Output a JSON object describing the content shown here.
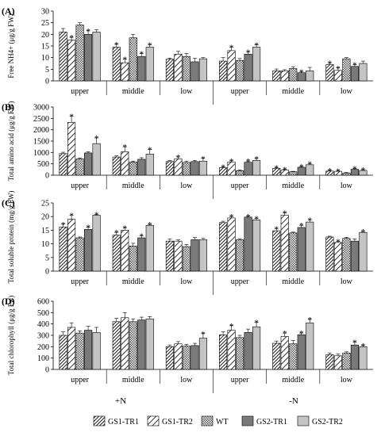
{
  "figure": {
    "n_label": "+N",
    "minus_n_label": "-N",
    "sig_mark": "*"
  },
  "legend": [
    {
      "name": "GS1-TR1",
      "pattern": "diag-dense"
    },
    {
      "name": "GS1-TR2",
      "pattern": "diag-wide"
    },
    {
      "name": "WT",
      "pattern": "checker"
    },
    {
      "name": "GS2-TR1",
      "pattern": "solid-dark"
    },
    {
      "name": "GS2-TR2",
      "pattern": "solid-light"
    }
  ],
  "chart_data": [
    {
      "type": "bar",
      "panel_label": "(A)",
      "ylabel": "Free NH4+ (μg/g FW)",
      "ylim": [
        0,
        30
      ],
      "yticks": [
        0,
        5,
        10,
        15,
        20,
        25,
        30
      ],
      "categories": [
        "upper",
        "middle",
        "low",
        "upper",
        "middle",
        "low"
      ],
      "series": [
        {
          "name": "GS1-TR1",
          "values": [
            21,
            14.5,
            9.3,
            8.5,
            4.3,
            7
          ],
          "errors": [
            1.5,
            1.2,
            0.5,
            1.5,
            0.8,
            0.7
          ],
          "sig": [
            false,
            true,
            false,
            false,
            false,
            true
          ]
        },
        {
          "name": "GS1-TR2",
          "values": [
            17.5,
            7.8,
            11.5,
            13,
            4.3,
            4.5
          ],
          "errors": [
            1.2,
            1.5,
            1.2,
            1.5,
            0.5,
            1.0
          ],
          "sig": [
            true,
            true,
            false,
            true,
            false,
            true
          ]
        },
        {
          "name": "WT",
          "values": [
            24,
            18.5,
            10.5,
            8.8,
            5.3,
            9.5
          ],
          "errors": [
            1.0,
            1.5,
            1.3,
            0.8,
            0.8,
            0.5
          ],
          "sig": [
            false,
            false,
            false,
            false,
            false,
            false
          ]
        },
        {
          "name": "GS2-TR1",
          "values": [
            20,
            10.5,
            8.2,
            11.5,
            3.5,
            6.2
          ],
          "errors": [
            1.5,
            1.2,
            1.5,
            1.0,
            0.5,
            0.8
          ],
          "sig": [
            true,
            true,
            false,
            true,
            true,
            true
          ]
        },
        {
          "name": "GS2-TR2",
          "values": [
            21,
            14.5,
            9.5,
            14.5,
            4.3,
            7.5
          ],
          "errors": [
            1.0,
            1.0,
            0.5,
            1.0,
            1.5,
            1.0
          ],
          "sig": [
            false,
            true,
            false,
            true,
            false,
            false
          ]
        }
      ]
    },
    {
      "type": "bar",
      "panel_label": "(B)",
      "ylabel": "Total amino acid (μg/g FW)",
      "ylim": [
        0,
        3000
      ],
      "yticks": [
        0,
        500,
        1000,
        1500,
        2000,
        2500,
        3000
      ],
      "categories": [
        "upper",
        "middle",
        "low",
        "upper",
        "middle",
        "low"
      ],
      "series": [
        {
          "name": "GS1-TR1",
          "values": [
            950,
            800,
            600,
            330,
            300,
            180
          ],
          "errors": [
            60,
            50,
            40,
            40,
            30,
            30
          ],
          "sig": [
            false,
            false,
            false,
            true,
            true,
            true
          ]
        },
        {
          "name": "GS1-TR2",
          "values": [
            2320,
            1030,
            720,
            580,
            230,
            170
          ],
          "errors": [
            280,
            220,
            80,
            50,
            30,
            30
          ],
          "sig": [
            true,
            true,
            true,
            true,
            true,
            true
          ]
        },
        {
          "name": "WT",
          "values": [
            720,
            580,
            560,
            200,
            150,
            100
          ],
          "errors": [
            40,
            40,
            60,
            30,
            20,
            20
          ],
          "sig": [
            false,
            false,
            false,
            false,
            false,
            false
          ]
        },
        {
          "name": "GS2-TR1",
          "values": [
            980,
            700,
            600,
            570,
            350,
            260
          ],
          "errors": [
            50,
            70,
            50,
            50,
            30,
            30
          ],
          "sig": [
            false,
            false,
            false,
            true,
            true,
            true
          ]
        },
        {
          "name": "GS2-TR2",
          "values": [
            1390,
            930,
            620,
            650,
            460,
            210
          ],
          "errors": [
            250,
            200,
            120,
            80,
            50,
            30
          ],
          "sig": [
            true,
            true,
            true,
            true,
            true,
            true
          ]
        }
      ]
    },
    {
      "type": "bar",
      "panel_label": "(C)",
      "ylabel": "Total soluble protein (mg/g FW)",
      "ylim": [
        0,
        25
      ],
      "yticks": [
        0,
        5,
        10,
        15,
        20,
        25
      ],
      "categories": [
        "upper",
        "middle",
        "low",
        "upper",
        "middle",
        "low"
      ],
      "series": [
        {
          "name": "GS1-TR1",
          "values": [
            16.2,
            13.2,
            11.0,
            17.8,
            14.8,
            12.5
          ],
          "errors": [
            1.0,
            1.0,
            0.8,
            0.5,
            0.8,
            0.3
          ],
          "sig": [
            true,
            true,
            false,
            false,
            true,
            false
          ]
        },
        {
          "name": "GS1-TR2",
          "values": [
            19.0,
            15.0,
            11.0,
            19.5,
            20.5,
            10.5
          ],
          "errors": [
            1.5,
            0.8,
            0.5,
            0.5,
            0.8,
            0.4
          ],
          "sig": [
            true,
            true,
            false,
            true,
            true,
            true
          ]
        },
        {
          "name": "WT",
          "values": [
            12.2,
            9.2,
            9.0,
            11.5,
            14.0,
            12.0
          ],
          "errors": [
            0.3,
            1.0,
            0.8,
            0.4,
            0.3,
            0.4
          ],
          "sig": [
            false,
            false,
            false,
            false,
            false,
            false
          ]
        },
        {
          "name": "GS2-TR1",
          "values": [
            15.3,
            12.2,
            11.5,
            19.8,
            16.0,
            11.0
          ],
          "errors": [
            0.8,
            0.8,
            0.8,
            0.3,
            0.8,
            0.8
          ],
          "sig": [
            true,
            true,
            false,
            true,
            true,
            false
          ]
        },
        {
          "name": "GS2-TR2",
          "values": [
            20.5,
            16.8,
            11.5,
            18.8,
            18.0,
            14.2
          ],
          "errors": [
            0.3,
            0.3,
            0.5,
            0.5,
            0.8,
            0.3
          ],
          "sig": [
            true,
            true,
            false,
            true,
            true,
            true
          ]
        }
      ]
    },
    {
      "type": "bar",
      "panel_label": "(D)",
      "ylabel": "Total chlorophyll (μg/g Fw)",
      "ylim": [
        0,
        600
      ],
      "yticks": [
        0,
        100,
        200,
        300,
        400,
        500,
        600
      ],
      "categories": [
        "upper",
        "middle",
        "low",
        "upper",
        "middle",
        "low"
      ],
      "series": [
        {
          "name": "GS1-TR1",
          "values": [
            300,
            420,
            200,
            305,
            230,
            130
          ],
          "errors": [
            30,
            30,
            15,
            25,
            20,
            15
          ],
          "sig": [
            false,
            false,
            false,
            false,
            false,
            false
          ]
        },
        {
          "name": "GS1-TR2",
          "values": [
            370,
            455,
            225,
            345,
            290,
            120
          ],
          "errors": [
            40,
            45,
            20,
            40,
            30,
            15
          ],
          "sig": [
            false,
            false,
            false,
            true,
            true,
            false
          ]
        },
        {
          "name": "WT",
          "values": [
            320,
            420,
            205,
            280,
            225,
            145
          ],
          "errors": [
            20,
            25,
            15,
            20,
            30,
            10
          ],
          "sig": [
            false,
            false,
            false,
            false,
            false,
            false
          ]
        },
        {
          "name": "GS2-TR1",
          "values": [
            345,
            435,
            210,
            325,
            305,
            215
          ],
          "errors": [
            35,
            25,
            20,
            30,
            15,
            25
          ],
          "sig": [
            false,
            false,
            false,
            false,
            true,
            true
          ]
        },
        {
          "name": "GS2-TR2",
          "values": [
            325,
            445,
            275,
            375,
            410,
            200
          ],
          "errors": [
            45,
            20,
            40,
            40,
            30,
            10
          ],
          "sig": [
            false,
            false,
            true,
            true,
            true,
            true
          ]
        }
      ]
    }
  ]
}
